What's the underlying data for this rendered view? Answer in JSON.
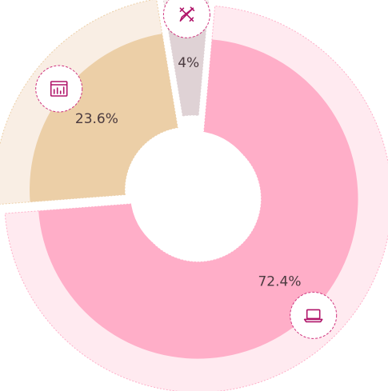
{
  "chart_data": {
    "type": "pie",
    "variant": "donut",
    "slices": [
      {
        "value": 72.4,
        "label": "72.4%",
        "icon": "laptop-icon",
        "color": "#ffaec8",
        "outer_color": "#ffeaf0"
      },
      {
        "value": 23.6,
        "label": "23.6%",
        "icon": "chart-window-icon",
        "color": "#eccfa7",
        "outer_color": "#f9eee4"
      },
      {
        "value": 4,
        "label": "4%",
        "icon": "design-tools-icon",
        "color": "#dfd2d5",
        "outer_color": "#f4eeee"
      }
    ],
    "icon_stroke_color": "#b0156a",
    "icon_ring_color": "#d0347e",
    "title": "",
    "legend": "none"
  }
}
